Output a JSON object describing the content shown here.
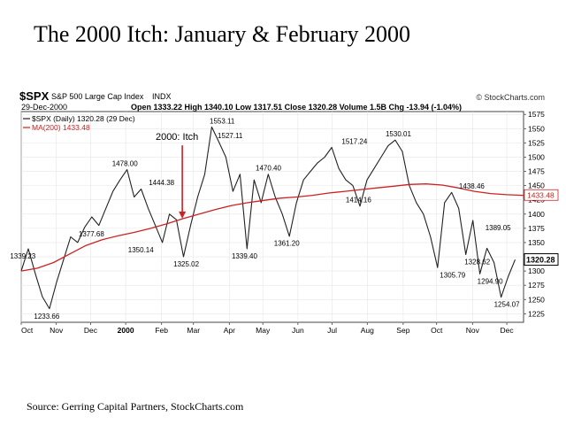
{
  "slide": {
    "title": "The 2000 Itch: January & February 2000",
    "source": "Source: Gerring Capital Partners, StockCharts.com"
  },
  "header": {
    "symbol": "$SPX",
    "name": "S&P 500 Large Cap Index",
    "exchange": "INDX",
    "watermark": "© StockCharts.com",
    "date": "29-Dec-2000",
    "stats": "Open 1333.22  High 1340.10  Low 1317.51  Close 1320.28  Volume 1.5B  Chg -13.94 (-1.04%)",
    "legend_price": "$SPX (Daily) 1320.28 (29 Dec)",
    "legend_ma": "MA(200) 1433.48"
  },
  "chart_data": {
    "type": "line",
    "y_axis_position": "right",
    "ylim": [
      1210,
      1580
    ],
    "yticks": [
      1225,
      1250,
      1275,
      1300,
      1325,
      1350,
      1375,
      1400,
      1425,
      1450,
      1475,
      1500,
      1525,
      1550,
      1575
    ],
    "xlim": [
      0,
      63
    ],
    "xticks": [
      {
        "label": "Oct",
        "x": 0
      },
      {
        "label": "Nov",
        "x": 4.4
      },
      {
        "label": "Dec",
        "x": 8.7
      },
      {
        "label": "2000",
        "x": 13.1
      },
      {
        "label": "Feb",
        "x": 17.6
      },
      {
        "label": "Mar",
        "x": 21.6
      },
      {
        "label": "Apr",
        "x": 26.1
      },
      {
        "label": "May",
        "x": 30.3
      },
      {
        "label": "Jun",
        "x": 34.7
      },
      {
        "label": "Jul",
        "x": 39.0
      },
      {
        "label": "Aug",
        "x": 43.4
      },
      {
        "label": "Sep",
        "x": 47.9
      },
      {
        "label": "Oct",
        "x": 52.1
      },
      {
        "label": "Nov",
        "x": 56.6
      },
      {
        "label": "Dec",
        "x": 60.9
      }
    ],
    "series": [
      {
        "name": "$SPX (Daily)",
        "color": "#222222",
        "values": [
          1300,
          1339,
          1295,
          1255,
          1234,
          1280,
          1320,
          1360,
          1350,
          1377,
          1395,
          1380,
          1410,
          1440,
          1460,
          1478,
          1430,
          1444,
          1410,
          1380,
          1350,
          1400,
          1390,
          1325,
          1380,
          1430,
          1470,
          1553,
          1527,
          1500,
          1440,
          1470,
          1339,
          1460,
          1420,
          1470,
          1430,
          1400,
          1361,
          1420,
          1460,
          1475,
          1490,
          1500,
          1517,
          1480,
          1460,
          1450,
          1414,
          1460,
          1480,
          1500,
          1520,
          1530,
          1510,
          1450,
          1420,
          1400,
          1360,
          1306,
          1420,
          1438,
          1410,
          1329,
          1389,
          1295,
          1340,
          1315,
          1254,
          1290,
          1320
        ],
        "x_step": 0.885
      },
      {
        "name": "MA(200)",
        "color": "#cc2222",
        "values": [
          1300,
          1305,
          1315,
          1330,
          1345,
          1355,
          1362,
          1368,
          1375,
          1383,
          1392,
          1400,
          1408,
          1415,
          1420,
          1424,
          1428,
          1430,
          1433,
          1437,
          1440,
          1443,
          1446,
          1449,
          1452,
          1453,
          1451,
          1446,
          1440,
          1436,
          1434,
          1433
        ],
        "x_step": 2.03
      }
    ],
    "annotations": [
      {
        "text": "1339.23",
        "x": 0.2,
        "y": 1339.23
      },
      {
        "text": "1233.66",
        "x": 3.2,
        "y": 1233.66
      },
      {
        "text": "1478.00",
        "x": 13.0,
        "y": 1478
      },
      {
        "text": "1377.68",
        "x": 8.8,
        "y": 1377.68
      },
      {
        "text": "1444.38",
        "x": 17.6,
        "y": 1444.38
      },
      {
        "text": "1350.14",
        "x": 15.0,
        "y": 1350.14
      },
      {
        "text": "1325.02",
        "x": 20.7,
        "y": 1325.02
      },
      {
        "text": "1553.11",
        "x": 25.2,
        "y": 1553.11
      },
      {
        "text": "1527.11",
        "x": 26.2,
        "y": 1527.11
      },
      {
        "text": "1339.40",
        "x": 28.0,
        "y": 1339.4
      },
      {
        "text": "1470.40",
        "x": 31.0,
        "y": 1470.4
      },
      {
        "text": "1361.20",
        "x": 33.3,
        "y": 1361.2
      },
      {
        "text": "1517.24",
        "x": 41.8,
        "y": 1517.24
      },
      {
        "text": "1414.16",
        "x": 42.3,
        "y": 1414.16
      },
      {
        "text": "1530.01",
        "x": 47.3,
        "y": 1530.01
      },
      {
        "text": "1305.79",
        "x": 54.1,
        "y": 1305.79
      },
      {
        "text": "1438.46",
        "x": 56.5,
        "y": 1438.46
      },
      {
        "text": "1328.62",
        "x": 57.2,
        "y": 1328.62
      },
      {
        "text": "1389.05",
        "x": 59.8,
        "y": 1389.05
      },
      {
        "text": "1294.90",
        "x": 58.8,
        "y": 1294.9
      },
      {
        "text": "1254.07",
        "x": 60.9,
        "y": 1254.07
      }
    ],
    "callout": {
      "text": "2000: Itch",
      "x": 20.2,
      "y_text": 1530,
      "y_arrow_end": 1392
    },
    "last_price_label": {
      "text": "1320.28",
      "y": 1320.28
    },
    "last_ma_label": {
      "text": "1433.48",
      "y": 1433.48
    }
  }
}
